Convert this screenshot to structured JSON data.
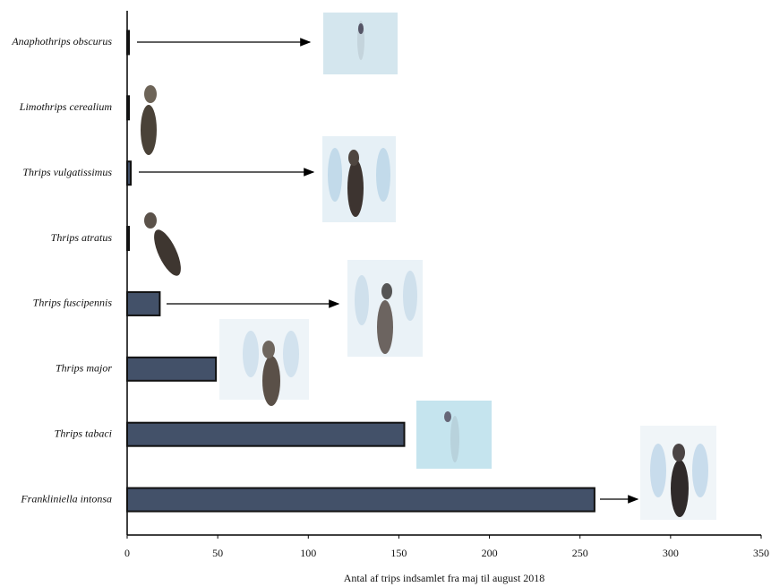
{
  "chart_data": {
    "type": "bar",
    "orientation": "horizontal",
    "xlabel": "Antal af trips indsamlet fra maj til august 2018",
    "categories": [
      "Anaphothrips obscurus",
      "Limothrips cerealium",
      "Thrips vulgatissimus",
      "Thrips atratus",
      "Thrips fuscipennis",
      "Thrips major",
      "Thrips tabaci",
      "Frankliniella intonsa"
    ],
    "values": [
      1,
      1,
      2,
      1,
      18,
      49,
      153,
      258
    ],
    "color": "#435169",
    "xlim": [
      0,
      350
    ],
    "xticks": [
      0,
      50,
      100,
      150,
      200,
      250,
      300,
      350
    ],
    "grid": false
  }
}
